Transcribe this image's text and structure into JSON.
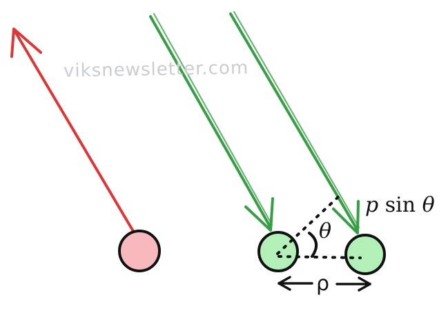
{
  "watermark": "viksnewsletter.com",
  "labels": {
    "psin_p": "p",
    "psin_sin": "sin",
    "psin_theta": "θ",
    "theta": "θ",
    "spacing": "ρ"
  },
  "colors": {
    "red_arrow": "#e03535",
    "green_arrow": "#35a043",
    "red_ball_fill": "#f8b9be",
    "green_ball_fill": "#b3f0b8",
    "outline": "#111111"
  },
  "icons": {
    "left_ball": "reflected-particle-circle",
    "right_balls": "incident-particle-circles"
  }
}
